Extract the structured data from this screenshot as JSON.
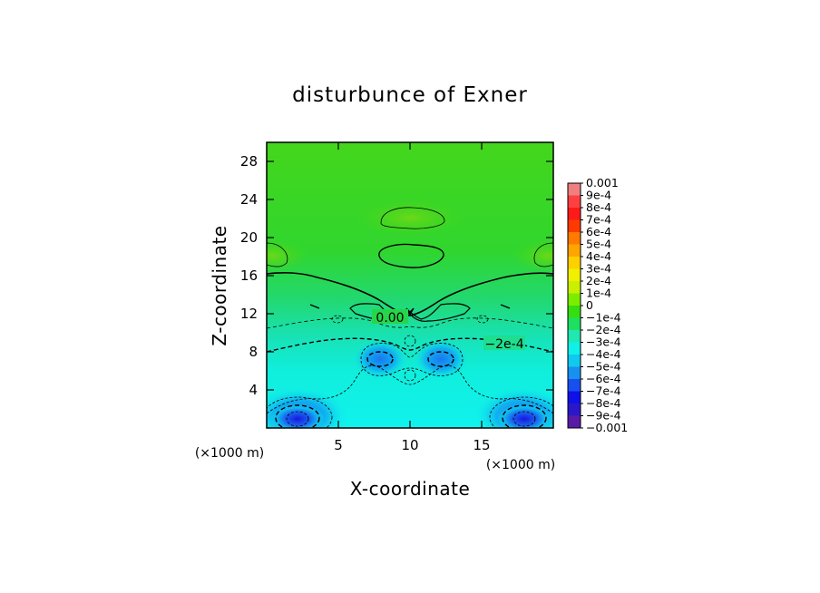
{
  "chart_data": {
    "type": "heatmap",
    "title": "disturbunce of Exner",
    "xlabel": "X-coordinate",
    "ylabel": "Z-coordinate",
    "x_unit": "(×1000 m)",
    "y_unit": "(×1000 m)",
    "xlim": [
      0,
      20
    ],
    "ylim": [
      0,
      30
    ],
    "x_ticks": [
      5,
      10,
      15
    ],
    "y_ticks": [
      4,
      8,
      12,
      16,
      20,
      24,
      28
    ],
    "colorbar": {
      "range": [
        -0.001,
        0.001
      ],
      "labels": [
        "0.001",
        "9e-4",
        "8e-4",
        "7e-4",
        "6e-4",
        "5e-4",
        "4e-4",
        "3e-4",
        "2e-4",
        "1e-4",
        "0",
        "−1e-4",
        "−2e-4",
        "−3e-4",
        "−4e-4",
        "−5e-4",
        "−6e-4",
        "−7e-4",
        "−8e-4",
        "−9e-4",
        "−0.001"
      ],
      "colors": [
        "#f08080",
        "#ff4040",
        "#ff1a1a",
        "#ff3a00",
        "#ff7a00",
        "#ffa500",
        "#ffd000",
        "#f0f000",
        "#c8f000",
        "#7cec00",
        "#34de10",
        "#1ee060",
        "#20e8b0",
        "#10f0e8",
        "#10c8f0",
        "#1890f0",
        "#1850f0",
        "#1010e8",
        "#2a18c8",
        "#5a1aa8"
      ]
    },
    "contour_labels": [
      {
        "text": "0.00",
        "x": 10.0,
        "z": 11.2
      },
      {
        "text": "−2e-4",
        "x": 15.0,
        "z": 8.8
      }
    ],
    "grid": false,
    "legend": "colorbar right"
  }
}
